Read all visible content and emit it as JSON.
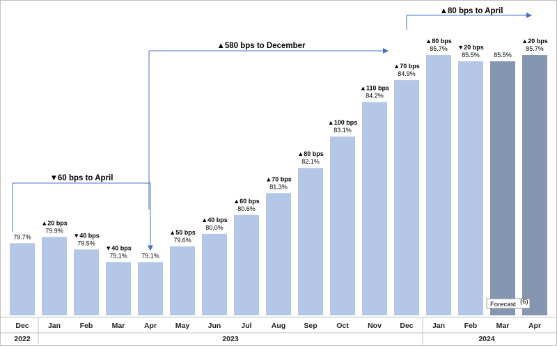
{
  "chart_data": {
    "type": "bar",
    "title": "",
    "xlabel": "",
    "ylabel": "",
    "ylim": [
      77.4,
      86.5
    ],
    "categories": [
      "Dec",
      "Jan",
      "Feb",
      "Mar",
      "Apr",
      "May",
      "Jun",
      "Jul",
      "Aug",
      "Sep",
      "Oct",
      "Nov",
      "Dec",
      "Jan",
      "Feb",
      "Mar",
      "Apr"
    ],
    "years": [
      {
        "label": "2022",
        "start": 0,
        "end": 0
      },
      {
        "label": "2023",
        "start": 1,
        "end": 12
      },
      {
        "label": "2024",
        "start": 13,
        "end": 16
      }
    ],
    "values": [
      79.7,
      79.9,
      79.5,
      79.1,
      79.1,
      79.6,
      80.0,
      80.6,
      81.3,
      82.1,
      83.1,
      84.2,
      84.9,
      85.7,
      85.5,
      85.5,
      85.7
    ],
    "value_labels": [
      "79.7%",
      "79.9%",
      "79.5%",
      "79.1%",
      "79.1%",
      "79.6%",
      "80.0%",
      "80.6%",
      "81.3%",
      "82.1%",
      "83.1%",
      "84.2%",
      "84.9%",
      "85.7%",
      "85.5%",
      "85.5%",
      "85.7%"
    ],
    "change_labels": [
      "",
      "▲20 bps",
      "▼40 bps",
      "▼40 bps",
      "",
      "▲50 bps",
      "▲40 bps",
      "▲60 bps",
      "▲70 bps",
      "▲80 bps",
      "▲100 bps",
      "▲110 bps",
      "▲70 bps",
      "▲80 bps",
      "▼20 bps",
      "",
      "▲20 bps"
    ],
    "forecast": [
      false,
      false,
      false,
      false,
      false,
      false,
      false,
      false,
      false,
      false,
      false,
      false,
      false,
      false,
      false,
      true,
      true
    ],
    "forecast_label": "Forecast",
    "forecast_note": "(6)",
    "annotations": [
      {
        "text": "▼60 bps to April",
        "from": 0,
        "to": 4
      },
      {
        "text": "▲580 bps to December",
        "from": 4,
        "to": 12
      },
      {
        "text": "▲80 bps to April",
        "from": 12,
        "to": 16
      }
    ],
    "colors": {
      "actual": "#b4c7e7",
      "forecast": "#8496b0",
      "arrow": "#4472c4",
      "divider": "#bfbfbf"
    }
  }
}
